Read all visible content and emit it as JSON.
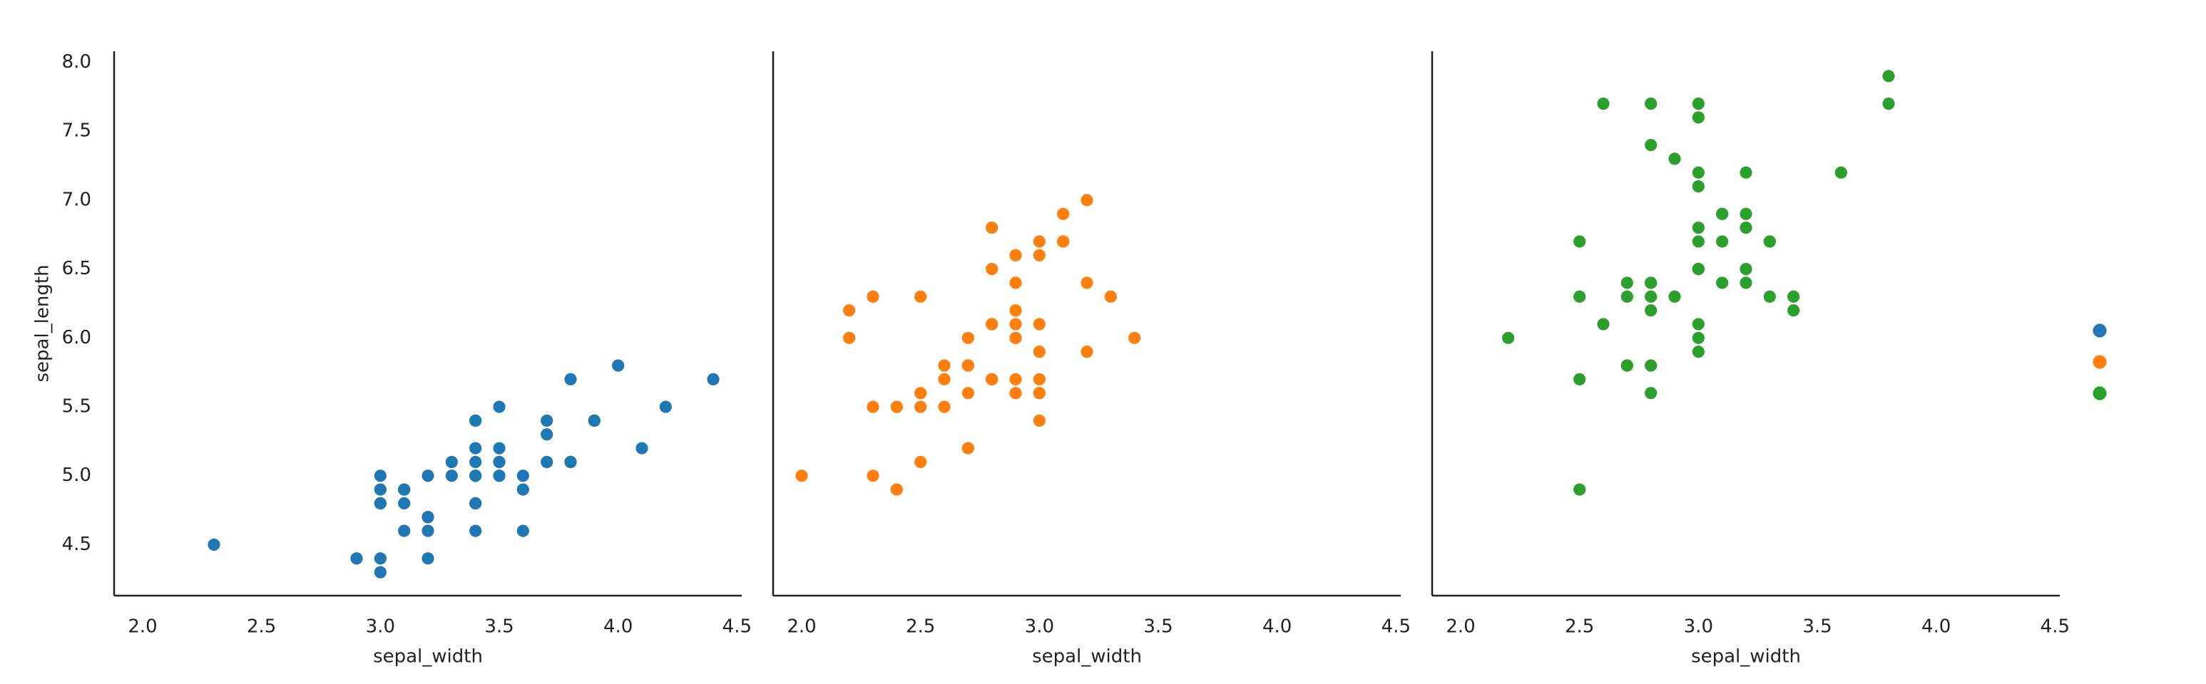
{
  "chart_data": [
    {
      "type": "scatter",
      "color": "#1f77b4",
      "x_label": "sepal_width",
      "y_label": "sepal_length",
      "xlim": [
        1.88,
        4.52
      ],
      "ylim": [
        4.13,
        8.08
      ],
      "xticks": [
        {
          "value": 2,
          "label": "2.0"
        },
        2.5,
        {
          "value": 3,
          "label": "3.0"
        },
        3.5,
        {
          "value": 4,
          "label": "4.0"
        },
        4.5
      ],
      "yticks": [
        4.5,
        {
          "value": 5,
          "label": "5.0"
        },
        5.5,
        {
          "value": 6,
          "label": "6.0"
        },
        6.5,
        {
          "value": 7,
          "label": "7.0"
        },
        7.5,
        {
          "value": 8,
          "label": "8.0"
        }
      ],
      "x": [
        3.5,
        3.0,
        3.2,
        3.1,
        3.6,
        3.9,
        3.4,
        3.4,
        2.9,
        3.1,
        3.7,
        3.4,
        3.0,
        3.0,
        4.0,
        4.4,
        3.9,
        3.5,
        3.8,
        3.8,
        3.4,
        3.7,
        3.6,
        3.3,
        3.4,
        3.0,
        3.4,
        3.5,
        3.4,
        3.2,
        3.1,
        3.4,
        4.1,
        4.2,
        3.1,
        3.2,
        3.5,
        3.6,
        3.0,
        3.4,
        3.5,
        2.3,
        3.2,
        3.5,
        3.8,
        3.0,
        3.8,
        3.2,
        3.7,
        3.3
      ],
      "values": [
        5.1,
        4.9,
        4.7,
        4.6,
        5.0,
        5.4,
        4.6,
        5.0,
        4.4,
        4.9,
        5.4,
        4.8,
        4.8,
        4.3,
        5.8,
        5.7,
        5.4,
        5.1,
        5.7,
        5.1,
        5.4,
        5.1,
        4.6,
        5.1,
        4.8,
        5.0,
        5.0,
        5.2,
        5.2,
        4.7,
        4.8,
        5.4,
        5.2,
        5.5,
        4.9,
        5.0,
        5.5,
        4.9,
        4.4,
        5.1,
        5.0,
        4.5,
        4.4,
        5.0,
        5.1,
        4.8,
        5.1,
        4.6,
        5.3,
        5.0
      ]
    },
    {
      "type": "scatter",
      "color": "#ff7f0e",
      "x_label": "sepal_width",
      "xlim": [
        1.88,
        4.52
      ],
      "ylim": [
        4.13,
        8.08
      ],
      "xticks": [
        {
          "value": 2,
          "label": "2.0"
        },
        2.5,
        {
          "value": 3,
          "label": "3.0"
        },
        3.5,
        {
          "value": 4,
          "label": "4.0"
        },
        4.5
      ],
      "x": [
        3.2,
        3.2,
        3.1,
        2.3,
        2.8,
        2.8,
        3.3,
        2.4,
        2.9,
        2.7,
        2.0,
        3.0,
        2.2,
        2.9,
        2.9,
        3.1,
        3.0,
        2.7,
        2.2,
        2.5,
        3.2,
        2.8,
        2.5,
        2.8,
        2.9,
        3.0,
        2.8,
        3.0,
        2.9,
        2.6,
        2.4,
        2.4,
        2.7,
        2.7,
        3.0,
        3.4,
        3.1,
        2.3,
        3.0,
        2.5,
        2.6,
        3.0,
        2.6,
        2.3,
        2.7,
        3.0,
        2.9,
        2.9,
        2.5,
        2.8
      ],
      "values": [
        7.0,
        6.4,
        6.9,
        5.5,
        6.5,
        5.7,
        6.3,
        4.9,
        6.6,
        5.2,
        5.0,
        5.9,
        6.0,
        6.1,
        5.6,
        6.7,
        5.6,
        5.8,
        6.2,
        5.6,
        5.9,
        6.1,
        6.3,
        6.1,
        6.4,
        6.6,
        6.8,
        6.7,
        6.0,
        5.7,
        5.5,
        5.5,
        5.8,
        6.0,
        5.4,
        6.0,
        6.7,
        6.3,
        5.6,
        5.5,
        5.5,
        6.1,
        5.8,
        5.0,
        5.6,
        5.7,
        5.7,
        6.2,
        5.1,
        5.7
      ]
    },
    {
      "type": "scatter",
      "color": "#2ca02c",
      "x_label": "sepal_width",
      "xlim": [
        1.88,
        4.52
      ],
      "ylim": [
        4.13,
        8.08
      ],
      "xticks": [
        {
          "value": 2,
          "label": "2.0"
        },
        2.5,
        {
          "value": 3,
          "label": "3.0"
        },
        3.5,
        {
          "value": 4,
          "label": "4.0"
        },
        4.5
      ],
      "x": [
        3.3,
        2.7,
        3.0,
        2.9,
        3.0,
        3.0,
        2.5,
        2.9,
        2.5,
        3.6,
        3.2,
        2.7,
        3.0,
        2.5,
        2.8,
        3.2,
        3.0,
        3.8,
        2.6,
        2.2,
        3.2,
        2.8,
        2.8,
        2.7,
        3.3,
        3.2,
        2.8,
        3.0,
        2.8,
        3.0,
        2.8,
        3.8,
        2.8,
        2.8,
        2.6,
        3.0,
        3.4,
        3.1,
        3.0,
        3.1,
        3.1,
        3.1,
        2.7,
        3.2,
        3.3,
        3.0,
        2.5,
        3.0,
        3.4,
        3.0
      ],
      "values": [
        6.3,
        5.8,
        7.1,
        6.3,
        6.5,
        7.6,
        4.9,
        7.3,
        6.7,
        7.2,
        6.5,
        6.4,
        6.8,
        5.7,
        5.8,
        6.4,
        6.5,
        7.7,
        7.7,
        6.0,
        6.9,
        5.6,
        7.7,
        6.3,
        6.7,
        7.2,
        6.2,
        6.1,
        6.4,
        7.2,
        7.4,
        7.9,
        6.4,
        6.3,
        6.1,
        7.7,
        6.3,
        6.4,
        6.0,
        6.9,
        6.7,
        6.9,
        5.8,
        6.8,
        6.7,
        6.7,
        6.3,
        6.5,
        6.2,
        5.9
      ]
    }
  ]
}
